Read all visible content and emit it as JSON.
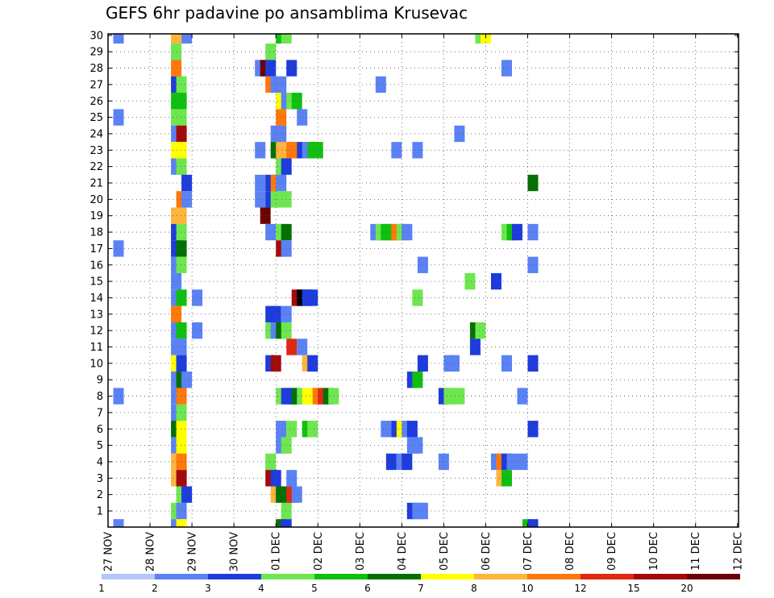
{
  "chart_data": {
    "type": "heatmap",
    "title": "GEFS 6hr padavine po ansamblima Krusevac",
    "x_tick_labels": [
      "27 NOV",
      "28 NOV",
      "29 NOV",
      "30 NOV",
      "01 DEC",
      "02 DEC",
      "03 DEC",
      "04 DEC",
      "05 DEC",
      "06 DEC",
      "07 DEC",
      "08 DEC",
      "09 DEC",
      "10 DEC",
      "11 DEC",
      "12 DEC"
    ],
    "y_tick_labels": [
      "1",
      "2",
      "3",
      "4",
      "5",
      "6",
      "7",
      "8",
      "9",
      "10",
      "11",
      "12",
      "13",
      "14",
      "15",
      "16",
      "17",
      "18",
      "19",
      "20",
      "21",
      "22",
      "23",
      "24",
      "25",
      "26",
      "27",
      "28",
      "29",
      "30"
    ],
    "grid": true,
    "legend": {
      "placement": "bottom",
      "labels": [
        "1",
        "2",
        "3",
        "4",
        "5",
        "6",
        "7",
        "8",
        "10",
        "12",
        "15",
        "20"
      ],
      "colors": [
        "#b4c6fa",
        "#5a82f5",
        "#1e3cdc",
        "#6ee650",
        "#10c010",
        "#057005",
        "#ffff00",
        "#ffb43c",
        "#ff780a",
        "#e12814",
        "#a50a0a",
        "#6e0000"
      ]
    },
    "x_unit": "6-hour steps from 27 NOV 00Z",
    "cells": [
      [
        0.5,
        30,
        1
      ],
      [
        0.5,
        25,
        1
      ],
      [
        0.5,
        17,
        1
      ],
      [
        0.5,
        8,
        1
      ],
      [
        0.5,
        0,
        1
      ],
      [
        6,
        30,
        7
      ],
      [
        6,
        29,
        3
      ],
      [
        6,
        28,
        8
      ],
      [
        6,
        27,
        2
      ],
      [
        6,
        26,
        4
      ],
      [
        6,
        25,
        3
      ],
      [
        6,
        24,
        1
      ],
      [
        6,
        23,
        6
      ],
      [
        6,
        22,
        1
      ],
      [
        6,
        19,
        7
      ],
      [
        6,
        18,
        2
      ],
      [
        6,
        17,
        2
      ],
      [
        6,
        16,
        1
      ],
      [
        6,
        15,
        1
      ],
      [
        6,
        14,
        1
      ],
      [
        6,
        13,
        8
      ],
      [
        6,
        12,
        1
      ],
      [
        6,
        11,
        1
      ],
      [
        6,
        10,
        6
      ],
      [
        6,
        9,
        1
      ],
      [
        6,
        8,
        1
      ],
      [
        6,
        7,
        1
      ],
      [
        6,
        6,
        5
      ],
      [
        6,
        5,
        1
      ],
      [
        6,
        4,
        7
      ],
      [
        6,
        3,
        7
      ],
      [
        6,
        1,
        3
      ],
      [
        6,
        0,
        1
      ],
      [
        6.5,
        27,
        3
      ],
      [
        6.5,
        26,
        4
      ],
      [
        6.5,
        25,
        3
      ],
      [
        6.5,
        24,
        10
      ],
      [
        6.5,
        23,
        6
      ],
      [
        6.5,
        22,
        3
      ],
      [
        6.5,
        20,
        8
      ],
      [
        6.5,
        19,
        7
      ],
      [
        6.5,
        18,
        3
      ],
      [
        6.5,
        17,
        5
      ],
      [
        6.5,
        16,
        3
      ],
      [
        6.5,
        14,
        4
      ],
      [
        6.5,
        12,
        4
      ],
      [
        6.5,
        11,
        1
      ],
      [
        6.5,
        10,
        2
      ],
      [
        6.5,
        9,
        5
      ],
      [
        6.5,
        8,
        8
      ],
      [
        6.5,
        7,
        3
      ],
      [
        6.5,
        6,
        6
      ],
      [
        6.5,
        5,
        6
      ],
      [
        6.5,
        4,
        8
      ],
      [
        6.5,
        3,
        10
      ],
      [
        6.5,
        2,
        3
      ],
      [
        6.5,
        1,
        1
      ],
      [
        6.5,
        0,
        6
      ],
      [
        7,
        30,
        1
      ],
      [
        7,
        21,
        2
      ],
      [
        7,
        20,
        1
      ],
      [
        7,
        9,
        1
      ],
      [
        7,
        2,
        2
      ],
      [
        8,
        14,
        1
      ],
      [
        8,
        12,
        1
      ],
      [
        14,
        28,
        1
      ],
      [
        14,
        23,
        1
      ],
      [
        14,
        21,
        1
      ],
      [
        14,
        20,
        1
      ],
      [
        14.5,
        28,
        11
      ],
      [
        14.5,
        19,
        11
      ],
      [
        15,
        29,
        3
      ],
      [
        15,
        28,
        2
      ],
      [
        15,
        27,
        8
      ],
      [
        15,
        21,
        2
      ],
      [
        15,
        20,
        2
      ],
      [
        15,
        18,
        1
      ],
      [
        15,
        13,
        2
      ],
      [
        15,
        12,
        3
      ],
      [
        15,
        10,
        2
      ],
      [
        15,
        4,
        3
      ],
      [
        15,
        3,
        10
      ],
      [
        15.5,
        27,
        1
      ],
      [
        15.5,
        24,
        1
      ],
      [
        15.5,
        23,
        5
      ],
      [
        15.5,
        21,
        8
      ],
      [
        15.5,
        20,
        3
      ],
      [
        15.5,
        13,
        2
      ],
      [
        15.5,
        12,
        1
      ],
      [
        15.5,
        10,
        10
      ],
      [
        15.5,
        3,
        2
      ],
      [
        15.5,
        2,
        7
      ],
      [
        16,
        30,
        4
      ],
      [
        16,
        27,
        1
      ],
      [
        16,
        26,
        6
      ],
      [
        16,
        25,
        8
      ],
      [
        16,
        24,
        1
      ],
      [
        16,
        23,
        7
      ],
      [
        16,
        22,
        3
      ],
      [
        16,
        21,
        1
      ],
      [
        16,
        20,
        3
      ],
      [
        16,
        18,
        3
      ],
      [
        16,
        17,
        10
      ],
      [
        16,
        12,
        5
      ],
      [
        16,
        8,
        3
      ],
      [
        16,
        6,
        1
      ],
      [
        16,
        5,
        1
      ],
      [
        16,
        2,
        5
      ],
      [
        16,
        0,
        5
      ],
      [
        16.5,
        30,
        3
      ],
      [
        16.5,
        26,
        1
      ],
      [
        16.5,
        23,
        7
      ],
      [
        16.5,
        22,
        2
      ],
      [
        16.5,
        20,
        3
      ],
      [
        16.5,
        18,
        5
      ],
      [
        16.5,
        17,
        1
      ],
      [
        16.5,
        13,
        1
      ],
      [
        16.5,
        12,
        3
      ],
      [
        16.5,
        8,
        2
      ],
      [
        16.5,
        5,
        3
      ],
      [
        16.5,
        2,
        5
      ],
      [
        16.5,
        1,
        3
      ],
      [
        16.5,
        0,
        2
      ],
      [
        17,
        28,
        2
      ],
      [
        17,
        26,
        3
      ],
      [
        17,
        23,
        8
      ],
      [
        17,
        11,
        9
      ],
      [
        17,
        8,
        2
      ],
      [
        17,
        6,
        3
      ],
      [
        17,
        3,
        1
      ],
      [
        17,
        2,
        9
      ],
      [
        17.5,
        26,
        4
      ],
      [
        17.5,
        23,
        8
      ],
      [
        17.5,
        14,
        10
      ],
      [
        17.5,
        8,
        5
      ],
      [
        17.5,
        2,
        1
      ],
      [
        18,
        25,
        1
      ],
      [
        18,
        23,
        2
      ],
      [
        18,
        14,
        12
      ],
      [
        18,
        11,
        1
      ],
      [
        18,
        8,
        3
      ],
      [
        18.5,
        23,
        1
      ],
      [
        18.5,
        14,
        2
      ],
      [
        18.5,
        10,
        7
      ],
      [
        18.5,
        8,
        6
      ],
      [
        18.5,
        6,
        4
      ],
      [
        19,
        23,
        4
      ],
      [
        19,
        14,
        2
      ],
      [
        19,
        10,
        2
      ],
      [
        19,
        8,
        6
      ],
      [
        19,
        6,
        3
      ],
      [
        19.5,
        23,
        4
      ],
      [
        19.5,
        8,
        8
      ],
      [
        20,
        8,
        9
      ],
      [
        20.5,
        8,
        5
      ],
      [
        21,
        8,
        3
      ],
      [
        25,
        18,
        1
      ],
      [
        25.5,
        27,
        1
      ],
      [
        25.5,
        18,
        3
      ],
      [
        26,
        18,
        4
      ],
      [
        26,
        6,
        1
      ],
      [
        26.5,
        18,
        4
      ],
      [
        26.5,
        4,
        2
      ],
      [
        27,
        18,
        8
      ],
      [
        27,
        23,
        1
      ],
      [
        27,
        6,
        2
      ],
      [
        27.5,
        18,
        3
      ],
      [
        27.5,
        6,
        6
      ],
      [
        27.5,
        4,
        1
      ],
      [
        28,
        18,
        1
      ],
      [
        28,
        6,
        1
      ],
      [
        28,
        4,
        2
      ],
      [
        28.5,
        9,
        2
      ],
      [
        28.5,
        6,
        2
      ],
      [
        28.5,
        5,
        1
      ],
      [
        28.5,
        1,
        2
      ],
      [
        29,
        23,
        1
      ],
      [
        29,
        14,
        3
      ],
      [
        29,
        9,
        4
      ],
      [
        29,
        5,
        1
      ],
      [
        29,
        1,
        1
      ],
      [
        29.5,
        16,
        1
      ],
      [
        29.5,
        10,
        2
      ],
      [
        29.5,
        1,
        1
      ],
      [
        31.5,
        8,
        2
      ],
      [
        31.5,
        4,
        1
      ],
      [
        32,
        10,
        1
      ],
      [
        32,
        8,
        3
      ],
      [
        32.5,
        10,
        1
      ],
      [
        32.5,
        8,
        3
      ],
      [
        33,
        24,
        1
      ],
      [
        33,
        8,
        3
      ],
      [
        34,
        15,
        3
      ],
      [
        34.5,
        12,
        5
      ],
      [
        34.5,
        11,
        2
      ],
      [
        35,
        30,
        3
      ],
      [
        35,
        12,
        3
      ],
      [
        35.5,
        30,
        6
      ],
      [
        36.5,
        15,
        2
      ],
      [
        36.5,
        4,
        1
      ],
      [
        37,
        4,
        8
      ],
      [
        37,
        3,
        7
      ],
      [
        37.5,
        28,
        1
      ],
      [
        37.5,
        18,
        3
      ],
      [
        37.5,
        10,
        1
      ],
      [
        37.5,
        4,
        2
      ],
      [
        37.5,
        3,
        4
      ],
      [
        38,
        18,
        4
      ],
      [
        38,
        4,
        1
      ],
      [
        38.5,
        18,
        2
      ],
      [
        39,
        8,
        1
      ],
      [
        39,
        4,
        1
      ],
      [
        39.5,
        0,
        4
      ],
      [
        40,
        21,
        5
      ],
      [
        40,
        18,
        1
      ],
      [
        40,
        16,
        1
      ],
      [
        40,
        10,
        2
      ],
      [
        40,
        6,
        2
      ],
      [
        40,
        0,
        2
      ]
    ]
  }
}
